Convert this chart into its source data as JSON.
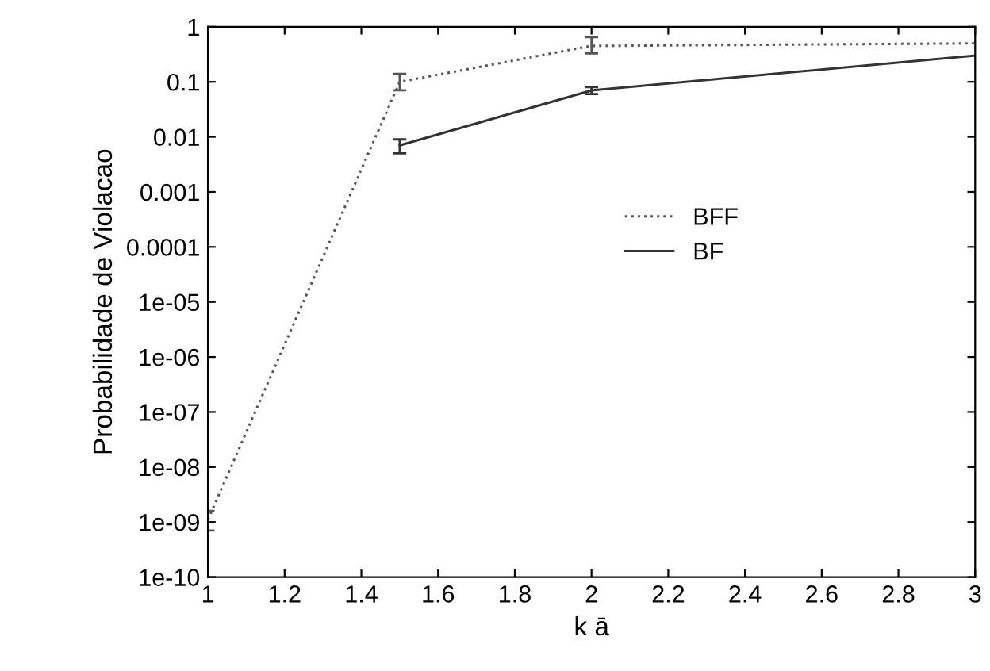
{
  "chart_data": {
    "type": "line",
    "xlabel": "k ā",
    "ylabel": "Probabilidade de Violacao",
    "log": "y",
    "xlim": [
      1,
      3
    ],
    "ylim": [
      1e-10,
      1
    ],
    "xticks": [
      1,
      1.2,
      1.4,
      1.6,
      1.8,
      2,
      2.2,
      2.4,
      2.6,
      2.8,
      3
    ],
    "yticks": [
      {
        "value": 1e-10,
        "label": "1e-10"
      },
      {
        "value": 1e-09,
        "label": "1e-09"
      },
      {
        "value": 1e-08,
        "label": "1e-08"
      },
      {
        "value": 1e-07,
        "label": "1e-07"
      },
      {
        "value": 1e-06,
        "label": "1e-06"
      },
      {
        "value": 1e-05,
        "label": "1e-05"
      },
      {
        "value": 0.0001,
        "label": "0.0001"
      },
      {
        "value": 0.001,
        "label": "0.001"
      },
      {
        "value": 0.01,
        "label": "0.01"
      },
      {
        "value": 0.1,
        "label": "0.1"
      },
      {
        "value": 1,
        "label": "1"
      }
    ],
    "grid": false,
    "legend": "right",
    "marker": "none",
    "series": [
      {
        "name": "BFF",
        "color": "#555555",
        "line_style": "dotted",
        "x": [
          1,
          1.5,
          2,
          3
        ],
        "values": [
          1.1e-09,
          0.1,
          0.45,
          0.5
        ],
        "errors": [
          [
            7e-10,
            1.6e-09
          ],
          [
            0.07,
            0.14
          ],
          [
            0.33,
            0.65
          ],
          null
        ]
      },
      {
        "name": "BF",
        "color": "#333333",
        "line_style": "solid",
        "x": [
          1.5,
          2,
          3
        ],
        "values": [
          0.007,
          0.07,
          0.3
        ],
        "errors": [
          [
            0.005,
            0.009
          ],
          [
            0.06,
            0.08
          ],
          null
        ]
      }
    ]
  }
}
